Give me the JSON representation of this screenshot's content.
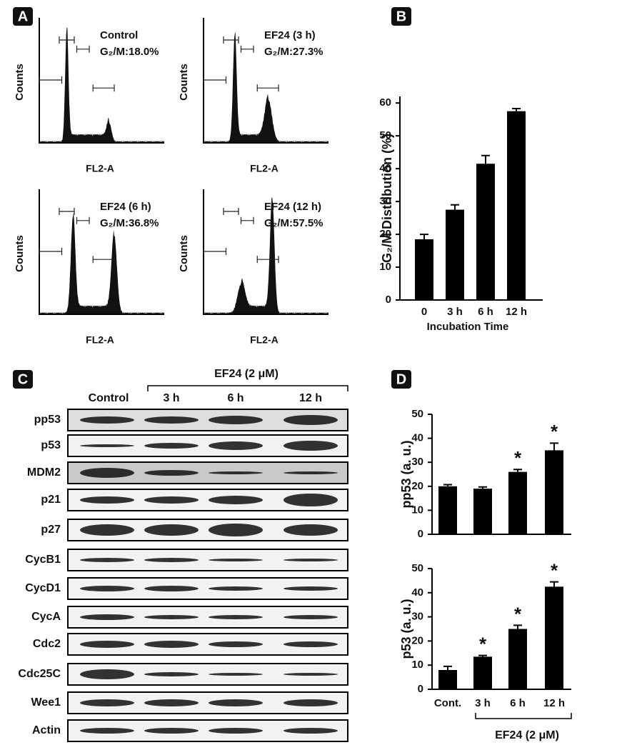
{
  "panel_labels": [
    "A",
    "B",
    "C",
    "D"
  ],
  "flow_axes": {
    "y": "Counts",
    "x": "FL2-A"
  },
  "flow": [
    {
      "label": "Control",
      "stat": "G₂/M:18.0%"
    },
    {
      "label": "EF24 (3 h)",
      "stat": "G₂/M:27.3%"
    },
    {
      "label": "EF24 (6 h)",
      "stat": "G₂/M:36.8%"
    },
    {
      "label": "EF24 (12 h)",
      "stat": "G₂/M:57.5%"
    }
  ],
  "blot": {
    "treatment": "EF24 (2 μM)",
    "columns": [
      "Control",
      "3 h",
      "6 h",
      "12 h"
    ],
    "rows": [
      "pp53",
      "p53",
      "MDM2",
      "p21",
      "p27",
      "CycB1",
      "CycD1",
      "CycA",
      "Cdc2",
      "Cdc25C",
      "Wee1",
      "Actin"
    ]
  },
  "chart_data": [
    {
      "type": "bar",
      "y_label": "G₂/M Distribution (%)",
      "x_label": "Incubation Time",
      "categories": [
        "0",
        "3 h",
        "6 h",
        "12 h"
      ],
      "values": [
        18.5,
        27.5,
        41.5,
        57.5
      ],
      "errors": [
        1.5,
        1.5,
        2.5,
        0.8
      ],
      "color": "#000000",
      "ylim": [
        0,
        62
      ],
      "yticks": [
        0,
        10,
        20,
        30,
        40,
        50,
        60
      ]
    },
    {
      "type": "bar",
      "y_label": "pp53 (a. u.)",
      "categories": [
        null,
        null,
        null,
        null
      ],
      "values": [
        20,
        19,
        26,
        35
      ],
      "errors": [
        0.7,
        0.7,
        1,
        3
      ],
      "annotations": [
        {
          "index": 2,
          "text": "*"
        },
        {
          "index": 3,
          "text": "*"
        }
      ],
      "color": "#000000",
      "ylim": [
        0,
        50
      ],
      "yticks": [
        0,
        10,
        20,
        30,
        40,
        50
      ]
    },
    {
      "type": "bar",
      "y_label": "p53 (a. u.)",
      "group_label": "EF24 (2 μM)",
      "categories": [
        "Cont.",
        "3 h",
        "6 h",
        "12 h"
      ],
      "values": [
        8,
        13.5,
        25,
        42.5
      ],
      "errors": [
        1.5,
        0.5,
        1.5,
        2
      ],
      "annotations": [
        {
          "index": 1,
          "text": "*"
        },
        {
          "index": 2,
          "text": "*"
        },
        {
          "index": 3,
          "text": "*"
        }
      ],
      "color": "#000000",
      "ylim": [
        0,
        50
      ],
      "yticks": [
        0,
        10,
        20,
        30,
        40,
        50
      ]
    }
  ]
}
